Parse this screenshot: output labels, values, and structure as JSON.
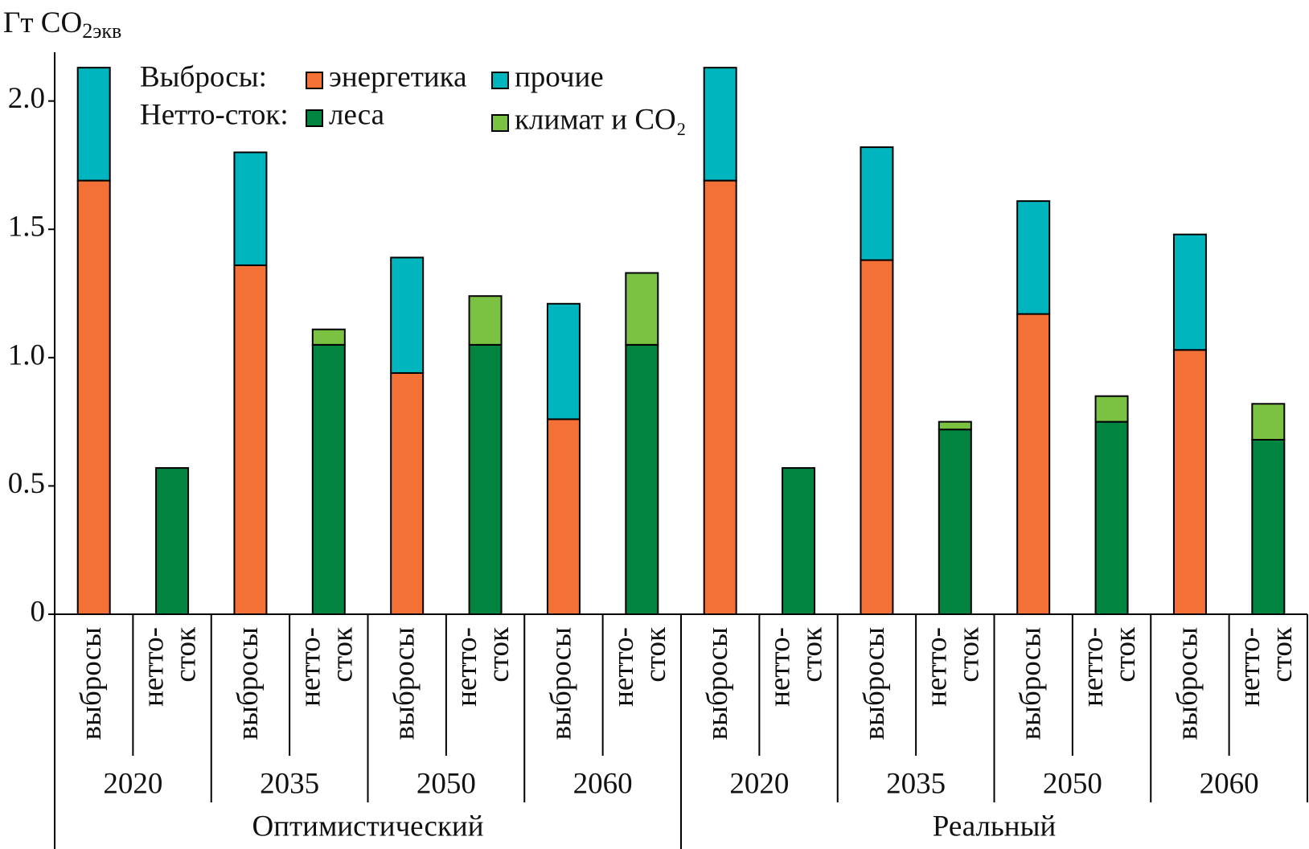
{
  "chart_data": {
    "type": "stacked-bar",
    "y_label": "Гт CO",
    "y_label_sub": "2экв",
    "legend_titles": [
      "Выбросы:",
      "Нетто-сток:"
    ],
    "categories": [
      [
        "выбросы"
      ],
      [
        "нетто-",
        "сток"
      ],
      [
        "выбросы"
      ],
      [
        "нетто-",
        "сток"
      ],
      [
        "выбросы"
      ],
      [
        "нетто-",
        "сток"
      ],
      [
        "выбросы"
      ],
      [
        "нетто-",
        "сток"
      ],
      [
        "выбросы"
      ],
      [
        "нетто-",
        "сток"
      ],
      [
        "выбросы"
      ],
      [
        "нетто-",
        "сток"
      ],
      [
        "выбросы"
      ],
      [
        "нетто-",
        "сток"
      ],
      [
        "выбросы"
      ],
      [
        "нетто-",
        "сток"
      ]
    ],
    "years": [
      "2020",
      "2035",
      "2050",
      "2060",
      "2020",
      "2035",
      "2050",
      "2060"
    ],
    "scenarios": [
      "Оптимистический",
      "Реальный"
    ],
    "series": [
      {
        "name": "энергетика",
        "color": "#f37036",
        "values": [
          1.69,
          null,
          1.36,
          null,
          0.94,
          null,
          0.76,
          null,
          1.69,
          null,
          1.38,
          null,
          1.17,
          null,
          1.03,
          null
        ]
      },
      {
        "name": "прочие",
        "color": "#00b5bd",
        "values": [
          0.44,
          null,
          0.44,
          null,
          0.45,
          null,
          0.45,
          null,
          0.44,
          null,
          0.44,
          null,
          0.44,
          null,
          0.45,
          null
        ]
      },
      {
        "name": "леса",
        "color": "#00843f",
        "values": [
          null,
          0.57,
          null,
          1.05,
          null,
          1.05,
          null,
          1.05,
          null,
          0.57,
          null,
          0.72,
          null,
          0.75,
          null,
          0.68
        ]
      },
      {
        "name": "климат и CO₂",
        "color": "#7cc242",
        "values": [
          null,
          null,
          null,
          0.06,
          null,
          0.19,
          null,
          0.28,
          null,
          null,
          null,
          0.03,
          null,
          0.1,
          null,
          0.14
        ]
      }
    ],
    "ylim": [
      0,
      2.19
    ],
    "yticks": [
      0,
      0.5,
      {
        "value": 1,
        "label": "1.0"
      },
      1.5,
      {
        "value": 2,
        "label": "2.0"
      }
    ]
  }
}
